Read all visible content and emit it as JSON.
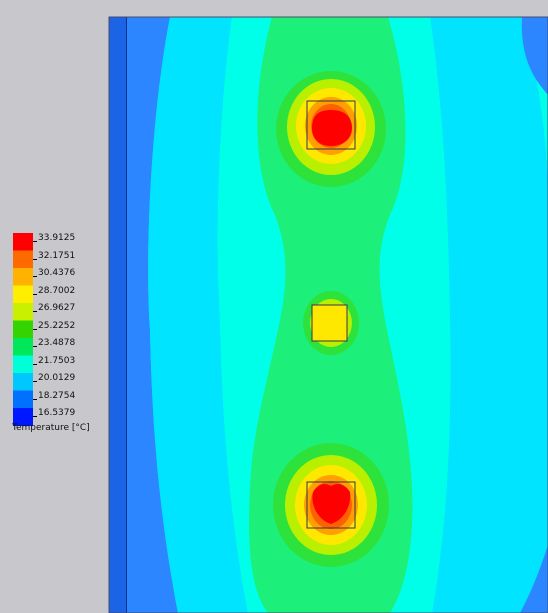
{
  "legend": {
    "title": "Temperature [°C]",
    "values": [
      "33.9125",
      "32.1751",
      "30.4376",
      "28.7002",
      "26.9627",
      "25.2252",
      "23.4878",
      "21.7503",
      "20.0129",
      "18.2754",
      "16.5379"
    ],
    "colors": [
      "#ff0000",
      "#ff6a00",
      "#ffb300",
      "#ffee00",
      "#c8f000",
      "#33d400",
      "#00e85a",
      "#00ffd8",
      "#00c8ff",
      "#0070ff",
      "#0018ff"
    ]
  },
  "colors": {
    "panel_bg": "#c8c8cc",
    "plot_border": "#4a4a6a",
    "edge_dark_blue": "#1c64e6",
    "blue": "#2c86ff",
    "cyan_light": "#00e4ff",
    "cyan": "#00ffe8",
    "green_light": "#1cf07a",
    "green": "#2ee23c",
    "yellow_green": "#b8f000",
    "yellow": "#ffe800",
    "orange": "#ffa000",
    "orange_red": "#ff6000",
    "red": "#ff0000",
    "chip_outline": "#333355"
  }
}
